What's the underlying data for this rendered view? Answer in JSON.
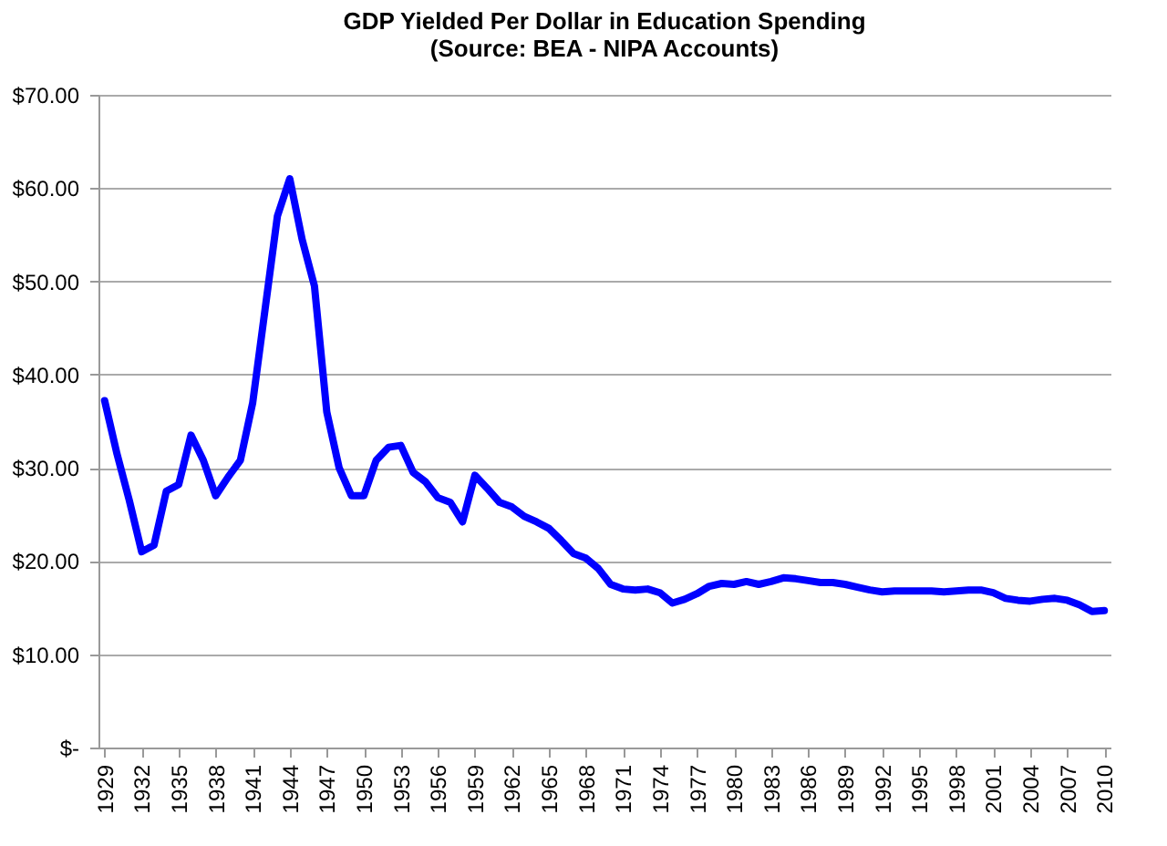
{
  "chart_data": {
    "type": "line",
    "title": [
      "GDP Yielded Per Dollar in Education Spending",
      "(Source: BEA - NIPA Accounts)"
    ],
    "x": [
      1929,
      1930,
      1931,
      1932,
      1933,
      1934,
      1935,
      1936,
      1937,
      1938,
      1939,
      1940,
      1941,
      1942,
      1943,
      1944,
      1945,
      1946,
      1947,
      1948,
      1949,
      1950,
      1951,
      1952,
      1953,
      1954,
      1955,
      1956,
      1957,
      1958,
      1959,
      1960,
      1961,
      1962,
      1963,
      1964,
      1965,
      1966,
      1967,
      1968,
      1969,
      1970,
      1971,
      1972,
      1973,
      1974,
      1975,
      1976,
      1977,
      1978,
      1979,
      1980,
      1981,
      1982,
      1983,
      1984,
      1985,
      1986,
      1987,
      1988,
      1989,
      1990,
      1991,
      1992,
      1993,
      1994,
      1995,
      1996,
      1997,
      1998,
      1999,
      2000,
      2001,
      2002,
      2003,
      2004,
      2005,
      2006,
      2007,
      2008,
      2009,
      2010
    ],
    "series": [
      {
        "color": "#0000ff",
        "values": [
          37.2,
          31.5,
          26.5,
          21.0,
          21.7,
          27.5,
          28.2,
          33.5,
          30.8,
          27.0,
          29.0,
          30.8,
          37.0,
          47.0,
          57.0,
          61.0,
          54.5,
          49.5,
          36.0,
          30.0,
          27.0,
          27.0,
          30.8,
          32.2,
          32.4,
          29.5,
          28.5,
          26.8,
          26.3,
          24.2,
          29.2,
          27.8,
          26.3,
          25.8,
          24.8,
          24.2,
          23.5,
          22.2,
          20.8,
          20.3,
          19.2,
          17.5,
          17.0,
          16.9,
          17.0,
          16.6,
          15.5,
          15.9,
          16.5,
          17.3,
          17.6,
          17.5,
          17.8,
          17.5,
          17.8,
          18.2,
          18.1,
          17.9,
          17.7,
          17.7,
          17.5,
          17.2,
          16.9,
          16.7,
          16.8,
          16.8,
          16.8,
          16.8,
          16.7,
          16.8,
          16.9,
          16.9,
          16.6,
          16.0,
          15.8,
          15.7,
          15.9,
          16.0,
          15.8,
          15.3,
          14.6,
          14.7
        ]
      }
    ],
    "xlim": [
      1928.5,
      2010.5
    ],
    "xticks": [
      1929,
      1932,
      1935,
      1938,
      1941,
      1944,
      1947,
      1950,
      1953,
      1956,
      1959,
      1962,
      1965,
      1968,
      1971,
      1974,
      1977,
      1980,
      1983,
      1986,
      1989,
      1992,
      1995,
      1998,
      2001,
      2004,
      2007,
      2010
    ],
    "ylim": [
      0,
      70
    ],
    "yticks": [
      {
        "value": 0,
        "label": "$-"
      },
      {
        "value": 10,
        "label": "$10.00"
      },
      {
        "value": 20,
        "label": "$20.00"
      },
      {
        "value": 30,
        "label": "$30.00"
      },
      {
        "value": 40,
        "label": "$40.00"
      },
      {
        "value": 50,
        "label": "$50.00"
      },
      {
        "value": 60,
        "label": "$60.00"
      },
      {
        "value": 70,
        "label": "$70.00"
      }
    ],
    "grid": "y",
    "legend": false,
    "marker": "none",
    "line_style": "solid"
  }
}
